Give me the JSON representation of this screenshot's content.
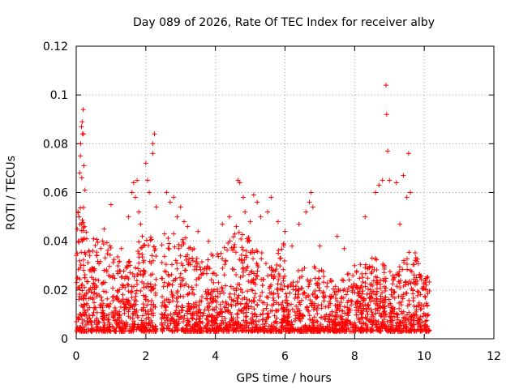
{
  "chart_data": {
    "type": "scatter",
    "title": "Day 089 of 2026, Rate Of TEC Index for receiver alby",
    "xlabel": "GPS time / hours",
    "ylabel": "ROTI / TECUs",
    "xlim": [
      0,
      12
    ],
    "ylim": [
      0,
      0.12
    ],
    "xticks": [
      0,
      2,
      4,
      6,
      8,
      10,
      12
    ],
    "xtick_labels": [
      "0",
      "2",
      "4",
      "6",
      "8",
      "10",
      "12"
    ],
    "yticks": [
      0,
      0.02,
      0.04,
      0.06,
      0.08,
      0.1,
      0.12
    ],
    "ytick_labels": [
      "0",
      "0.02",
      "0.04",
      "0.06",
      "0.08",
      "0.1",
      "0.12"
    ],
    "grid": true,
    "marker": "plus",
    "marker_color": "#ff0000",
    "series": [
      {
        "name": "ROTI",
        "points": [
          [
            0.03,
            0.045
          ],
          [
            0.05,
            0.052
          ],
          [
            0.08,
            0.05
          ],
          [
            0.1,
            0.068
          ],
          [
            0.12,
            0.075
          ],
          [
            0.13,
            0.08
          ],
          [
            0.15,
            0.087
          ],
          [
            0.17,
            0.089
          ],
          [
            0.18,
            0.084
          ],
          [
            0.2,
            0.094
          ],
          [
            0.21,
            0.084
          ],
          [
            0.22,
            0.071
          ],
          [
            0.25,
            0.061
          ],
          [
            0.16,
            0.066
          ],
          [
            0.3,
            0.041
          ],
          [
            0.5,
            0.041
          ],
          [
            0.8,
            0.045
          ],
          [
            1.0,
            0.055
          ],
          [
            1.3,
            0.037
          ],
          [
            1.5,
            0.05
          ],
          [
            1.6,
            0.06
          ],
          [
            1.65,
            0.064
          ],
          [
            1.7,
            0.058
          ],
          [
            1.75,
            0.065
          ],
          [
            1.8,
            0.052
          ],
          [
            1.85,
            0.047
          ],
          [
            1.9,
            0.042
          ],
          [
            2.0,
            0.072
          ],
          [
            2.05,
            0.065
          ],
          [
            2.1,
            0.06
          ],
          [
            2.2,
            0.08
          ],
          [
            2.25,
            0.084
          ],
          [
            2.2,
            0.076
          ],
          [
            2.3,
            0.054
          ],
          [
            2.6,
            0.06
          ],
          [
            2.7,
            0.056
          ],
          [
            2.8,
            0.058
          ],
          [
            2.9,
            0.05
          ],
          [
            3.0,
            0.054
          ],
          [
            3.1,
            0.048
          ],
          [
            3.2,
            0.046
          ],
          [
            3.5,
            0.044
          ],
          [
            3.8,
            0.04
          ],
          [
            4.2,
            0.047
          ],
          [
            4.4,
            0.05
          ],
          [
            4.6,
            0.046
          ],
          [
            4.65,
            0.065
          ],
          [
            4.7,
            0.064
          ],
          [
            4.8,
            0.058
          ],
          [
            4.85,
            0.052
          ],
          [
            5.0,
            0.048
          ],
          [
            5.1,
            0.059
          ],
          [
            5.2,
            0.056
          ],
          [
            5.3,
            0.05
          ],
          [
            5.5,
            0.052
          ],
          [
            5.6,
            0.058
          ],
          [
            5.8,
            0.048
          ],
          [
            6.0,
            0.044
          ],
          [
            6.2,
            0.038
          ],
          [
            6.4,
            0.047
          ],
          [
            6.6,
            0.052
          ],
          [
            6.7,
            0.056
          ],
          [
            6.75,
            0.06
          ],
          [
            6.8,
            0.054
          ],
          [
            7.0,
            0.038
          ],
          [
            7.5,
            0.042
          ],
          [
            7.7,
            0.037
          ],
          [
            8.0,
            0.03
          ],
          [
            8.3,
            0.05
          ],
          [
            8.6,
            0.06
          ],
          [
            8.7,
            0.063
          ],
          [
            8.8,
            0.065
          ],
          [
            8.9,
            0.104
          ],
          [
            8.92,
            0.092
          ],
          [
            8.95,
            0.077
          ],
          [
            9.0,
            0.065
          ],
          [
            9.2,
            0.064
          ],
          [
            9.3,
            0.047
          ],
          [
            9.4,
            0.067
          ],
          [
            9.5,
            0.058
          ],
          [
            9.55,
            0.076
          ],
          [
            9.6,
            0.06
          ]
        ]
      }
    ]
  }
}
